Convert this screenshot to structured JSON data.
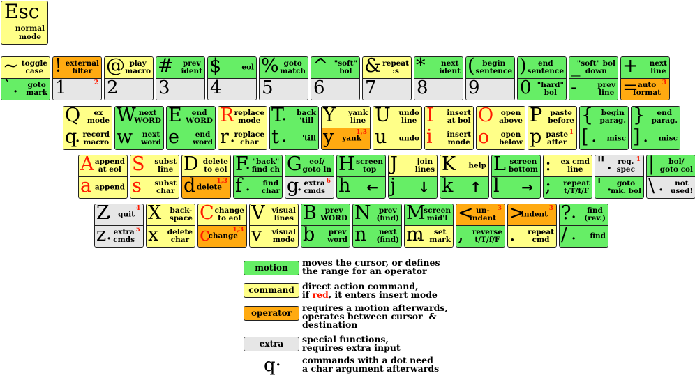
{
  "esc": {
    "key": "Esc",
    "label": "normal\nmode"
  },
  "legend": {
    "motion": {
      "label": "motion",
      "text": "moves the cursor, or defines\nthe range for an operator"
    },
    "command": {
      "label": "command",
      "text1": "direct action command,",
      "text2_pre": "if ",
      "text2_red": "red",
      "text2_post": ", it enters insert mode"
    },
    "operator": {
      "label": "operator",
      "text": "requires a motion afterwards,\noperates between cursor  &\ndestination"
    },
    "extra": {
      "label": "extra",
      "text": "special functions,\nrequires extra input"
    },
    "dot": {
      "glyph": "q·",
      "text": "commands with a dot need\na char argument afterwards"
    }
  },
  "colors": {
    "motion": "#66ee66",
    "command": "#ffff88",
    "operator": "#ffaa11",
    "extra": "#e6e6e6",
    "red": "#ff1a00"
  },
  "rows": {
    "row1": [
      {
        "top": {
          "ch": "~",
          "desc": "toggle\ncase",
          "cls": "command"
        },
        "bot": {
          "ch": "`",
          "dot": true,
          "desc": "goto\nmark",
          "cls": "motion"
        }
      },
      {
        "top": {
          "ch": "!",
          "desc": "external\nfilter",
          "cls": "operator"
        },
        "bot": {
          "num": "1",
          "sup": "2",
          "cls": "extra"
        }
      },
      {
        "top": {
          "ch": "@",
          "dot": true,
          "desc": "play\nmacro",
          "cls": "command"
        },
        "bot": {
          "num": "2",
          "cls": "extra"
        }
      },
      {
        "top": {
          "ch": "#",
          "desc": "prev\nident",
          "cls": "motion"
        },
        "bot": {
          "num": "3",
          "cls": "extra"
        }
      },
      {
        "top": {
          "ch": "$",
          "desc": "eol",
          "cls": "motion"
        },
        "bot": {
          "num": "4",
          "cls": "extra"
        }
      },
      {
        "top": {
          "ch": "%",
          "desc": "goto\nmatch",
          "cls": "motion"
        },
        "bot": {
          "num": "5",
          "cls": "extra"
        }
      },
      {
        "top": {
          "ch": "^",
          "desc": "\"soft\"\nbol",
          "cls": "motion"
        },
        "bot": {
          "num": "6",
          "cls": "extra"
        }
      },
      {
        "top": {
          "ch": "&",
          "desc": "repeat\n:s",
          "cls": "command"
        },
        "bot": {
          "num": "7",
          "cls": "extra"
        }
      },
      {
        "top": {
          "ch": "*",
          "desc": "next\nident",
          "cls": "motion"
        },
        "bot": {
          "num": "8",
          "cls": "extra"
        }
      },
      {
        "top": {
          "ch": "(",
          "desc": "begin\nsentence",
          "cls": "motion"
        },
        "bot": {
          "num": "9",
          "cls": "extra"
        }
      },
      {
        "top": {
          "ch": ")",
          "desc": "end\nsentence",
          "cls": "motion"
        },
        "bot": {
          "num": "0",
          "desc": "\"hard\"\nbol",
          "cls": "motion"
        }
      },
      {
        "top": {
          "ch": "_",
          "desc": "\"soft\" bol\ndown",
          "cls": "motion"
        },
        "bot": {
          "ch": "-",
          "desc": "prev\nline",
          "cls": "motion"
        }
      },
      {
        "top": {
          "ch": "+",
          "desc": "next\nline",
          "cls": "motion"
        },
        "bot": {
          "ch": "=",
          "desc": "auto\nformat",
          "sup": "3",
          "cls": "operator"
        }
      }
    ],
    "row2": [
      {
        "top": {
          "ch": "Q",
          "desc": "ex\nmode",
          "cls": "command"
        },
        "bot": {
          "ch": "q",
          "dot": true,
          "desc": "record\nmacro",
          "cls": "command"
        }
      },
      {
        "top": {
          "ch": "W",
          "desc": "next\nWORD",
          "cls": "motion"
        },
        "bot": {
          "ch": "w",
          "desc": "next\nword",
          "cls": "motion"
        }
      },
      {
        "top": {
          "ch": "E",
          "desc": "end\nWORD",
          "cls": "motion"
        },
        "bot": {
          "ch": "e",
          "desc": "end\nword",
          "cls": "motion"
        }
      },
      {
        "top": {
          "ch": "R",
          "red": true,
          "desc": "replace\nmode",
          "cls": "command"
        },
        "bot": {
          "ch": "r",
          "dot": true,
          "desc": "replace\nchar",
          "cls": "command"
        }
      },
      {
        "top": {
          "ch": "T",
          "dot": true,
          "desc": "back\n'till",
          "cls": "motion"
        },
        "bot": {
          "ch": "t",
          "dot": true,
          "desc": "'till",
          "cls": "motion"
        }
      },
      {
        "top": {
          "ch": "Y",
          "desc": "yank\nline",
          "cls": "command"
        },
        "bot": {
          "ch": "y",
          "desc": "yank",
          "sup": "1,3",
          "cls": "operator"
        }
      },
      {
        "top": {
          "ch": "U",
          "desc": "undo\nline",
          "cls": "command"
        },
        "bot": {
          "ch": "u",
          "desc": "undo",
          "cls": "command"
        }
      },
      {
        "top": {
          "ch": "I",
          "red": true,
          "desc": "insert\nat bol",
          "cls": "command"
        },
        "bot": {
          "ch": "i",
          "red": true,
          "desc": "insert\nmode",
          "cls": "command"
        }
      },
      {
        "top": {
          "ch": "O",
          "red": true,
          "desc": "open\nabove",
          "cls": "command"
        },
        "bot": {
          "ch": "o",
          "red": true,
          "desc": "open\nbelow",
          "cls": "command"
        }
      },
      {
        "top": {
          "ch": "P",
          "desc": "paste\nbefore",
          "cls": "command"
        },
        "bot": {
          "ch": "p",
          "desc": "paste\nafter",
          "sup": "1",
          "cls": "command"
        }
      },
      {
        "top": {
          "ch": "{",
          "desc": "begin\nparag.",
          "cls": "motion"
        },
        "bot": {
          "ch": "[",
          "dot": true,
          "desc": "misc",
          "cls": "motion"
        }
      },
      {
        "top": {
          "ch": "}",
          "desc": "end\nparag.",
          "cls": "motion"
        },
        "bot": {
          "ch": "]",
          "dot": true,
          "desc": "misc",
          "cls": "motion"
        }
      }
    ],
    "row3": [
      {
        "top": {
          "ch": "A",
          "red": true,
          "desc": "append\nat eol",
          "cls": "command"
        },
        "bot": {
          "ch": "a",
          "red": true,
          "desc": "append",
          "cls": "command"
        }
      },
      {
        "top": {
          "ch": "S",
          "red": true,
          "desc": "subst\nline",
          "cls": "command"
        },
        "bot": {
          "ch": "s",
          "red": true,
          "desc": "subst\nchar",
          "cls": "command"
        }
      },
      {
        "top": {
          "ch": "D",
          "desc": "delete\nto eol",
          "cls": "command"
        },
        "bot": {
          "ch": "d",
          "desc": "delete",
          "sup": "1,3",
          "cls": "operator"
        }
      },
      {
        "top": {
          "ch": "F",
          "dot": true,
          "desc": "\"back\"\nfind ch",
          "cls": "motion"
        },
        "bot": {
          "ch": "f",
          "dot": true,
          "desc": "find\nchar",
          "cls": "motion"
        }
      },
      {
        "top": {
          "ch": "G",
          "desc": "eof/\ngoto ln",
          "cls": "motion"
        },
        "bot": {
          "ch": "g",
          "dot": true,
          "desc": "extra\ncmds",
          "sup": "6",
          "cls": "extra"
        }
      },
      {
        "top": {
          "ch": "H",
          "desc": "screen\ntop",
          "cls": "motion"
        },
        "bot": {
          "ch": "h",
          "arrow": "←",
          "cls": "motion"
        }
      },
      {
        "top": {
          "ch": "J",
          "desc": "join\nlines",
          "cls": "command"
        },
        "bot": {
          "ch": "j",
          "arrow": "↓",
          "cls": "motion"
        }
      },
      {
        "top": {
          "ch": "K",
          "desc": "help",
          "cls": "command"
        },
        "bot": {
          "ch": "k",
          "arrow": "↑",
          "cls": "motion"
        }
      },
      {
        "top": {
          "ch": "L",
          "desc": "screen\nbottom",
          "cls": "motion"
        },
        "bot": {
          "ch": "l",
          "arrow": "→",
          "cls": "motion"
        }
      },
      {
        "top": {
          "ch": ":",
          "desc": "ex cmd\nline",
          "cls": "command"
        },
        "bot": {
          "ch": ";",
          "desc": "repeat\nt/T/f/F",
          "cls": "motion"
        }
      },
      {
        "top": {
          "ch": "\"",
          "dot": true,
          "desc": "reg.\nspec",
          "sup": "1",
          "cls": "extra"
        },
        "bot": {
          "ch": "'",
          "dot": true,
          "desc": "goto\nmk. bol",
          "cls": "motion"
        }
      },
      {
        "top": {
          "ch": "|",
          "desc": "bol/\ngoto col",
          "cls": "motion"
        },
        "bot": {
          "ch": "\\",
          "dot": true,
          "desc": "not\nused!",
          "cls": "extra"
        }
      }
    ],
    "row4": [
      {
        "top": {
          "ch": "Z",
          "dot": true,
          "desc": "quit",
          "sup": "4",
          "cls": "extra"
        },
        "bot": {
          "ch": "z",
          "dot": true,
          "desc": "extra\ncmds",
          "sup": "5",
          "cls": "extra"
        }
      },
      {
        "top": {
          "ch": "X",
          "desc": "back-\nspace",
          "cls": "command"
        },
        "bot": {
          "ch": "x",
          "desc": "delete\nchar",
          "cls": "command"
        }
      },
      {
        "top": {
          "ch": "C",
          "red": true,
          "desc": "change\nto eol",
          "cls": "command"
        },
        "bot": {
          "ch": "c",
          "red": true,
          "desc": "change",
          "sup": "1,3",
          "cls": "operator"
        }
      },
      {
        "top": {
          "ch": "V",
          "desc": "visual\nlines",
          "cls": "command"
        },
        "bot": {
          "ch": "v",
          "desc": "visual\nmode",
          "cls": "command"
        }
      },
      {
        "top": {
          "ch": "B",
          "desc": "prev\nWORD",
          "cls": "motion"
        },
        "bot": {
          "ch": "b",
          "desc": "prev\nword",
          "cls": "motion"
        }
      },
      {
        "top": {
          "ch": "N",
          "desc": "prev\n(find)",
          "cls": "motion"
        },
        "bot": {
          "ch": "n",
          "desc": "next\n(find)",
          "cls": "motion"
        }
      },
      {
        "top": {
          "ch": "M",
          "desc": "screen\nmid'l",
          "cls": "motion"
        },
        "bot": {
          "ch": "m",
          "dot": true,
          "desc": "set\nmark",
          "cls": "command"
        }
      },
      {
        "top": {
          "ch": "<",
          "desc": "un-\nindent",
          "sup": "3",
          "cls": "operator"
        },
        "bot": {
          "ch": ",",
          "desc": "reverse\nt/T/f/F",
          "cls": "motion"
        }
      },
      {
        "top": {
          "ch": ">",
          "desc": "indent",
          "sup": "3",
          "cls": "operator"
        },
        "bot": {
          "ch": ".",
          "desc": "repeat\ncmd",
          "cls": "command"
        }
      },
      {
        "top": {
          "ch": "?",
          "dot": true,
          "desc": "find\n(rev.)",
          "cls": "motion"
        },
        "bot": {
          "ch": "/",
          "dot": true,
          "desc": "find",
          "cls": "motion"
        }
      }
    ]
  }
}
